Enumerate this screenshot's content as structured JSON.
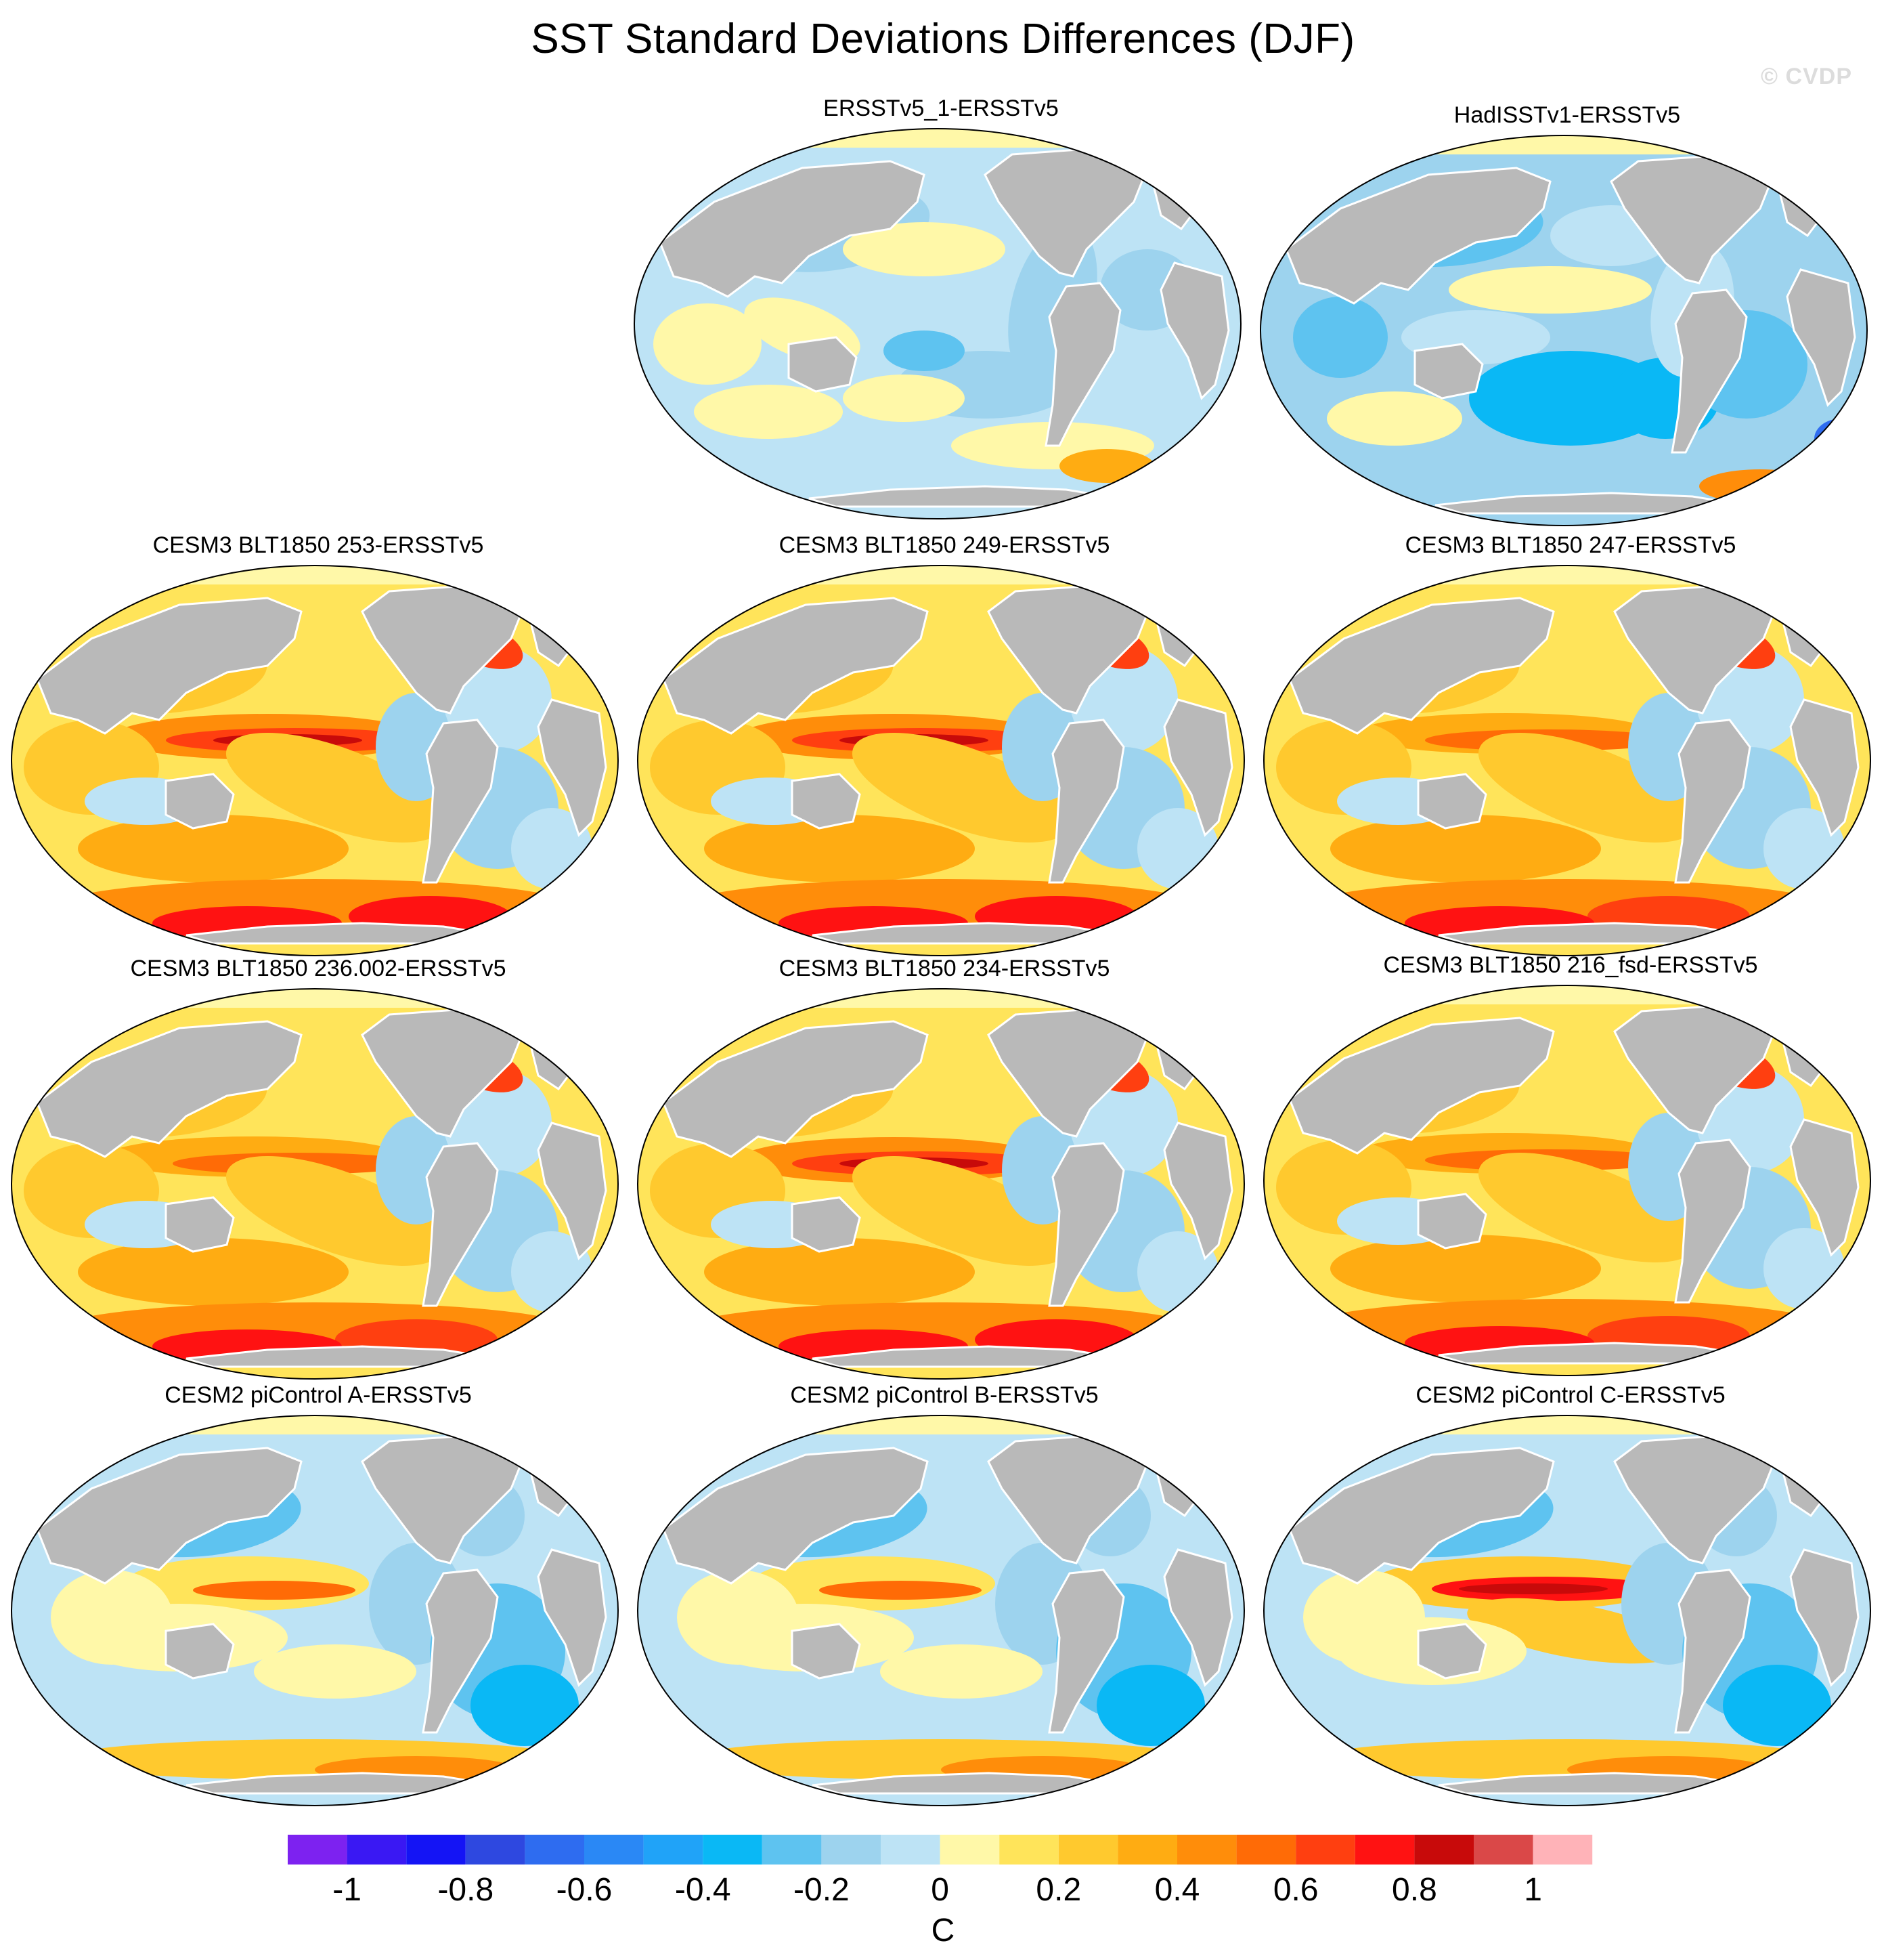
{
  "title": "SST Standard Deviations Differences (DJF)",
  "copyright": "© CVDP",
  "colors": {
    "land": "#b9b9b9",
    "arctic_fill": "#fff8a8",
    "coast": "#ffffff",
    "border": "#000000"
  },
  "panels": [
    {
      "title": "ERSSTv5_1-ERSSTv5",
      "scheme": "obs1"
    },
    {
      "title": "HadISSTv1-ERSSTv5",
      "scheme": "obs2"
    },
    {
      "title": "CESM3 BLT1850 253-ERSSTv5",
      "scheme": "cesm3_strong"
    },
    {
      "title": "CESM3 BLT1850 249-ERSSTv5",
      "scheme": "cesm3_strong"
    },
    {
      "title": "CESM3 BLT1850 247-ERSSTv5",
      "scheme": "cesm3"
    },
    {
      "title": "CESM3 BLT1850 236.002-ERSSTv5",
      "scheme": "cesm3"
    },
    {
      "title": "CESM3 BLT1850 234-ERSSTv5",
      "scheme": "cesm3_strong"
    },
    {
      "title": "CESM3 BLT1850 216_fsd-ERSSTv5",
      "scheme": "cesm3"
    },
    {
      "title": "CESM2 piControl A-ERSSTv5",
      "scheme": "cesm2"
    },
    {
      "title": "CESM2 piControl B-ERSSTv5",
      "scheme": "cesm2"
    },
    {
      "title": "CESM2 piControl C-ERSSTv5",
      "scheme": "cesm2_strong"
    }
  ],
  "colorbar": {
    "unit": "C",
    "tick_labels": [
      "-1",
      "-0.8",
      "-0.6",
      "-0.4",
      "-0.2",
      "0",
      "0.2",
      "0.4",
      "0.6",
      "0.8",
      "1"
    ],
    "levels": [
      -1.1,
      -1,
      -0.9,
      -0.8,
      -0.7,
      -0.6,
      -0.5,
      -0.4,
      -0.3,
      -0.2,
      -0.1,
      0,
      0.1,
      0.2,
      0.3,
      0.4,
      0.5,
      0.6,
      0.7,
      0.8,
      0.9,
      1,
      1.1
    ],
    "colors": [
      "#7d22f0",
      "#3a18f3",
      "#1414f5",
      "#2e48e0",
      "#2e6cf0",
      "#2a88f5",
      "#20a3f8",
      "#0ab8f5",
      "#5ec3f0",
      "#9dd3ee",
      "#bde3f5",
      "#fff8a8",
      "#ffe45a",
      "#ffc92e",
      "#ffac12",
      "#ff8d0a",
      "#ff6b06",
      "#ff3f10",
      "#ff1212",
      "#c80a0a",
      "#da4848",
      "#ffb3b8"
    ]
  }
}
